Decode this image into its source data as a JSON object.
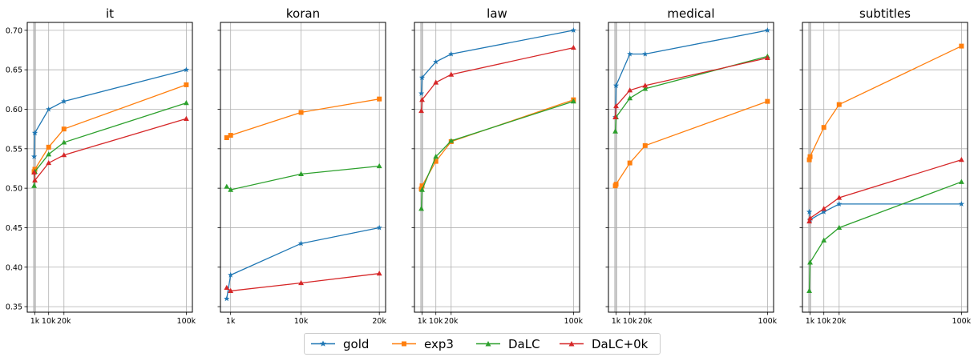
{
  "series_styles": [
    {
      "name": "gold",
      "color": "#1f77b4",
      "marker": "star"
    },
    {
      "name": "exp3",
      "color": "#ff7f0e",
      "marker": "square"
    },
    {
      "name": "DaLC",
      "color": "#2ca02c",
      "marker": "triangle"
    },
    {
      "name": "DaLC+0k",
      "color": "#d62728",
      "marker": "triangle"
    }
  ],
  "legend": {
    "labels": [
      "gold",
      "exp3",
      "DaLC",
      "DaLC+0k"
    ],
    "placement": "bottom-center"
  },
  "chart_data": [
    {
      "type": "line",
      "title": "it",
      "xlim": [
        -4000,
        104000
      ],
      "ylim": [
        0.343,
        0.71
      ],
      "x_ticks": [
        1000,
        10000,
        20000,
        100000
      ],
      "x_tick_labels": [
        "1k",
        "10k",
        "20k",
        "100k"
      ],
      "y_ticks": [
        0.35,
        0.4,
        0.45,
        0.5,
        0.55,
        0.6,
        0.65,
        0.7
      ],
      "y_tick_labels": [
        "0.35",
        "0.40",
        "0.45",
        "0.50",
        "0.55",
        "0.60",
        "0.65",
        "0.70"
      ],
      "show_y_tick_labels": true,
      "grid": true,
      "extra_gridlines": [
        500,
        1000
      ],
      "series": [
        {
          "name": "gold",
          "x": [
            500,
            1000,
            10000,
            20000,
            100000
          ],
          "y": [
            0.54,
            0.57,
            0.6,
            0.61,
            0.65
          ]
        },
        {
          "name": "exp3",
          "x": [
            500,
            1000,
            10000,
            20000,
            100000
          ],
          "y": [
            0.521,
            0.524,
            0.552,
            0.575,
            0.631
          ]
        },
        {
          "name": "DaLC",
          "x": [
            500,
            1000,
            10000,
            20000,
            100000
          ],
          "y": [
            0.503,
            0.521,
            0.543,
            0.558,
            0.608
          ]
        },
        {
          "name": "DaLC+0k",
          "x": [
            500,
            1000,
            10000,
            20000,
            100000
          ],
          "y": [
            0.52,
            0.51,
            0.532,
            0.542,
            0.588
          ]
        }
      ]
    },
    {
      "type": "line",
      "title": "koran",
      "xlim": [
        -300,
        20800
      ],
      "ylim": [
        0.343,
        0.71
      ],
      "x_ticks": [
        1000,
        10000,
        20000
      ],
      "x_tick_labels": [
        "1k",
        "10k",
        "20k"
      ],
      "y_ticks": [
        0.35,
        0.4,
        0.45,
        0.5,
        0.55,
        0.6,
        0.65,
        0.7
      ],
      "y_tick_labels": [
        "0.35",
        "0.40",
        "0.45",
        "0.50",
        "0.55",
        "0.60",
        "0.65",
        "0.70"
      ],
      "show_y_tick_labels": false,
      "grid": true,
      "extra_gridlines": [],
      "series": [
        {
          "name": "gold",
          "x": [
            500,
            1000,
            10000,
            20000
          ],
          "y": [
            0.36,
            0.39,
            0.43,
            0.45
          ]
        },
        {
          "name": "exp3",
          "x": [
            500,
            1000,
            10000,
            20000
          ],
          "y": [
            0.564,
            0.567,
            0.596,
            0.613
          ]
        },
        {
          "name": "DaLC",
          "x": [
            500,
            1000,
            10000,
            20000
          ],
          "y": [
            0.502,
            0.498,
            0.518,
            0.528
          ]
        },
        {
          "name": "DaLC+0k",
          "x": [
            500,
            1000,
            10000,
            20000
          ],
          "y": [
            0.374,
            0.37,
            0.38,
            0.392
          ]
        }
      ]
    },
    {
      "type": "line",
      "title": "law",
      "xlim": [
        -4000,
        104000
      ],
      "ylim": [
        0.343,
        0.71
      ],
      "x_ticks": [
        1000,
        10000,
        20000,
        100000
      ],
      "x_tick_labels": [
        "1k",
        "10k",
        "20k",
        "100k"
      ],
      "y_ticks": [
        0.35,
        0.4,
        0.45,
        0.5,
        0.55,
        0.6,
        0.65,
        0.7
      ],
      "y_tick_labels": [
        "0.35",
        "0.40",
        "0.45",
        "0.50",
        "0.55",
        "0.60",
        "0.65",
        "0.70"
      ],
      "show_y_tick_labels": false,
      "grid": true,
      "extra_gridlines": [
        500,
        1000
      ],
      "series": [
        {
          "name": "gold",
          "x": [
            500,
            1000,
            10000,
            20000,
            100000
          ],
          "y": [
            0.62,
            0.64,
            0.66,
            0.67,
            0.7
          ]
        },
        {
          "name": "exp3",
          "x": [
            500,
            1000,
            10000,
            20000,
            100000
          ],
          "y": [
            0.499,
            0.503,
            0.534,
            0.559,
            0.612
          ]
        },
        {
          "name": "DaLC",
          "x": [
            500,
            1000,
            10000,
            20000,
            100000
          ],
          "y": [
            0.474,
            0.498,
            0.54,
            0.56,
            0.61
          ]
        },
        {
          "name": "DaLC+0k",
          "x": [
            500,
            1000,
            10000,
            20000,
            100000
          ],
          "y": [
            0.598,
            0.612,
            0.634,
            0.644,
            0.678
          ]
        }
      ]
    },
    {
      "type": "line",
      "title": "medical",
      "xlim": [
        -4000,
        104000
      ],
      "ylim": [
        0.343,
        0.71
      ],
      "x_ticks": [
        1000,
        10000,
        20000,
        100000
      ],
      "x_tick_labels": [
        "1k",
        "10k",
        "20k",
        "100k"
      ],
      "y_ticks": [
        0.35,
        0.4,
        0.45,
        0.5,
        0.55,
        0.6,
        0.65,
        0.7
      ],
      "y_tick_labels": [
        "0.35",
        "0.40",
        "0.45",
        "0.50",
        "0.55",
        "0.60",
        "0.65",
        "0.70"
      ],
      "show_y_tick_labels": false,
      "grid": true,
      "extra_gridlines": [
        500,
        1000
      ],
      "series": [
        {
          "name": "gold",
          "x": [
            500,
            1000,
            10000,
            20000,
            100000
          ],
          "y": [
            0.59,
            0.63,
            0.67,
            0.67,
            0.7
          ]
        },
        {
          "name": "exp3",
          "x": [
            500,
            1000,
            10000,
            20000,
            100000
          ],
          "y": [
            0.503,
            0.505,
            0.532,
            0.554,
            0.61
          ]
        },
        {
          "name": "DaLC",
          "x": [
            500,
            1000,
            10000,
            20000,
            100000
          ],
          "y": [
            0.572,
            0.59,
            0.614,
            0.626,
            0.667
          ]
        },
        {
          "name": "DaLC+0k",
          "x": [
            500,
            1000,
            10000,
            20000,
            100000
          ],
          "y": [
            0.59,
            0.604,
            0.624,
            0.63,
            0.665
          ]
        }
      ]
    },
    {
      "type": "line",
      "title": "subtitles",
      "xlim": [
        -4000,
        104000
      ],
      "ylim": [
        0.343,
        0.71
      ],
      "x_ticks": [
        1000,
        10000,
        20000,
        100000
      ],
      "x_tick_labels": [
        "1k",
        "10k",
        "20k",
        "100k"
      ],
      "y_ticks": [
        0.35,
        0.4,
        0.45,
        0.5,
        0.55,
        0.6,
        0.65,
        0.7
      ],
      "y_tick_labels": [
        "0.35",
        "0.40",
        "0.45",
        "0.50",
        "0.55",
        "0.60",
        "0.65",
        "0.70"
      ],
      "show_y_tick_labels": false,
      "grid": true,
      "extra_gridlines": [
        500,
        1000
      ],
      "series": [
        {
          "name": "gold",
          "x": [
            500,
            1000,
            10000,
            20000,
            100000
          ],
          "y": [
            0.47,
            0.46,
            0.47,
            0.48,
            0.48
          ]
        },
        {
          "name": "exp3",
          "x": [
            500,
            1000,
            10000,
            20000,
            100000
          ],
          "y": [
            0.536,
            0.54,
            0.577,
            0.606,
            0.68
          ]
        },
        {
          "name": "DaLC",
          "x": [
            500,
            1000,
            10000,
            20000,
            100000
          ],
          "y": [
            0.37,
            0.406,
            0.434,
            0.45,
            0.508
          ]
        },
        {
          "name": "DaLC+0k",
          "x": [
            500,
            1000,
            10000,
            20000,
            100000
          ],
          "y": [
            0.458,
            0.462,
            0.474,
            0.488,
            0.536
          ]
        }
      ]
    }
  ]
}
